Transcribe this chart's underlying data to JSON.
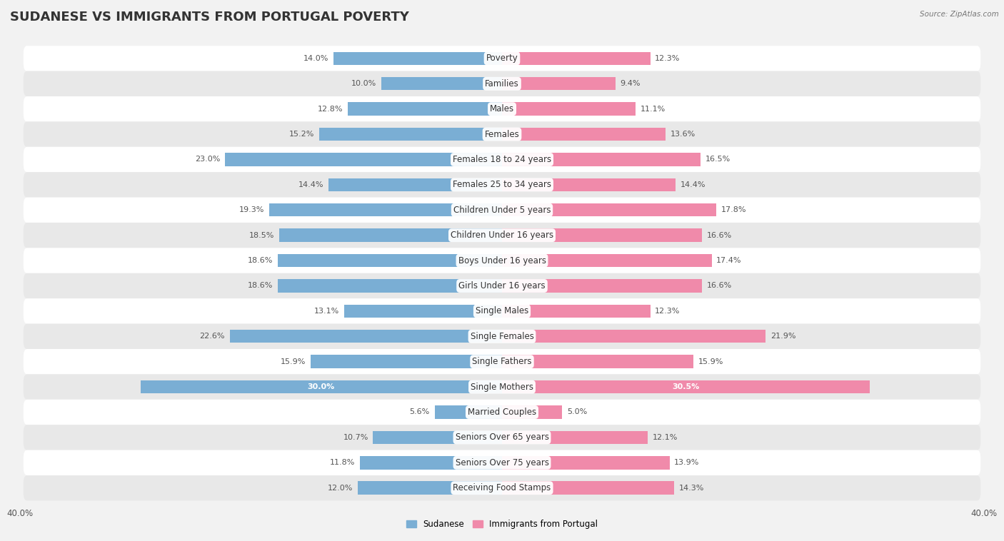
{
  "title": "SUDANESE VS IMMIGRANTS FROM PORTUGAL POVERTY",
  "source": "Source: ZipAtlas.com",
  "categories": [
    "Poverty",
    "Families",
    "Males",
    "Females",
    "Females 18 to 24 years",
    "Females 25 to 34 years",
    "Children Under 5 years",
    "Children Under 16 years",
    "Boys Under 16 years",
    "Girls Under 16 years",
    "Single Males",
    "Single Females",
    "Single Fathers",
    "Single Mothers",
    "Married Couples",
    "Seniors Over 65 years",
    "Seniors Over 75 years",
    "Receiving Food Stamps"
  ],
  "left_values": [
    14.0,
    10.0,
    12.8,
    15.2,
    23.0,
    14.4,
    19.3,
    18.5,
    18.6,
    18.6,
    13.1,
    22.6,
    15.9,
    30.0,
    5.6,
    10.7,
    11.8,
    12.0
  ],
  "right_values": [
    12.3,
    9.4,
    11.1,
    13.6,
    16.5,
    14.4,
    17.8,
    16.6,
    17.4,
    16.6,
    12.3,
    21.9,
    15.9,
    30.5,
    5.0,
    12.1,
    13.9,
    14.3
  ],
  "left_color": "#7aaed4",
  "right_color": "#f08aaa",
  "left_label": "Sudanese",
  "right_label": "Immigrants from Portugal",
  "xlim": 40.0,
  "bar_height": 0.52,
  "background_color": "#f2f2f2",
  "row_bg_even": "#ffffff",
  "row_bg_odd": "#e8e8e8",
  "title_fontsize": 13,
  "cat_fontsize": 8.5,
  "value_fontsize": 8.0,
  "axis_label_fontsize": 8.5,
  "source_fontsize": 7.5,
  "legend_fontsize": 8.5
}
